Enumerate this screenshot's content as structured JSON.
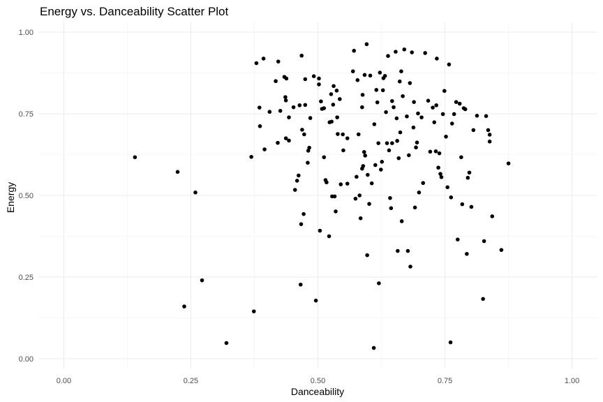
{
  "chart_data": {
    "type": "scatter",
    "title": "Energy vs. Danceability Scatter Plot",
    "xlabel": "Danceability",
    "ylabel": "Energy",
    "xlim": [
      -0.05,
      1.05
    ],
    "ylim": [
      -0.03,
      1.03
    ],
    "xticks": [
      0.0,
      0.25,
      0.5,
      0.75,
      1.0
    ],
    "xtick_labels": [
      "0.00",
      "0.25",
      "0.50",
      "0.75",
      "1.00"
    ],
    "yticks": [
      0.0,
      0.25,
      0.5,
      0.75,
      1.0
    ],
    "ytick_labels": [
      "0.00",
      "0.25",
      "0.50",
      "0.75",
      "1.00"
    ],
    "grid": true,
    "legend": "none",
    "point_color": "#000000",
    "points": [
      [
        0.14,
        0.617
      ],
      [
        0.224,
        0.572
      ],
      [
        0.259,
        0.509
      ],
      [
        0.237,
        0.16
      ],
      [
        0.272,
        0.24
      ],
      [
        0.32,
        0.048
      ],
      [
        0.369,
        0.618
      ],
      [
        0.374,
        0.145
      ],
      [
        0.379,
        0.905
      ],
      [
        0.385,
        0.769
      ],
      [
        0.386,
        0.712
      ],
      [
        0.393,
        0.919
      ],
      [
        0.395,
        0.641
      ],
      [
        0.405,
        0.756
      ],
      [
        0.417,
        0.85
      ],
      [
        0.421,
        0.661
      ],
      [
        0.422,
        0.91
      ],
      [
        0.426,
        0.759
      ],
      [
        0.434,
        0.863
      ],
      [
        0.436,
        0.801
      ],
      [
        0.437,
        0.791
      ],
      [
        0.438,
        0.858
      ],
      [
        0.437,
        0.675
      ],
      [
        0.443,
        0.668
      ],
      [
        0.443,
        0.739
      ],
      [
        0.452,
        0.77
      ],
      [
        0.455,
        0.517
      ],
      [
        0.459,
        0.545
      ],
      [
        0.462,
        0.561
      ],
      [
        0.464,
        0.776
      ],
      [
        0.466,
        0.227
      ],
      [
        0.467,
        0.412
      ],
      [
        0.468,
        0.928
      ],
      [
        0.469,
        0.701
      ],
      [
        0.472,
        0.443
      ],
      [
        0.473,
        0.687
      ],
      [
        0.475,
        0.856
      ],
      [
        0.475,
        0.777
      ],
      [
        0.48,
        0.6
      ],
      [
        0.481,
        0.637
      ],
      [
        0.483,
        0.646
      ],
      [
        0.485,
        0.737
      ],
      [
        0.492,
        0.865
      ],
      [
        0.496,
        0.178
      ],
      [
        0.502,
        0.84
      ],
      [
        0.502,
        0.858
      ],
      [
        0.504,
        0.392
      ],
      [
        0.506,
        0.788
      ],
      [
        0.508,
        0.765
      ],
      [
        0.512,
        0.767
      ],
      [
        0.512,
        0.617
      ],
      [
        0.515,
        0.547
      ],
      [
        0.517,
        0.54
      ],
      [
        0.522,
        0.375
      ],
      [
        0.523,
        0.724
      ],
      [
        0.526,
        0.81
      ],
      [
        0.527,
        0.726
      ],
      [
        0.528,
        0.497
      ],
      [
        0.53,
        0.778
      ],
      [
        0.531,
        0.835
      ],
      [
        0.533,
        0.497
      ],
      [
        0.535,
        0.451
      ],
      [
        0.537,
        0.821
      ],
      [
        0.538,
        0.739
      ],
      [
        0.539,
        0.688
      ],
      [
        0.543,
        0.795
      ],
      [
        0.545,
        0.534
      ],
      [
        0.549,
        0.687
      ],
      [
        0.55,
        0.638
      ],
      [
        0.558,
        0.675
      ],
      [
        0.558,
        0.536
      ],
      [
        0.569,
        0.88
      ],
      [
        0.571,
        0.943
      ],
      [
        0.574,
        0.49
      ],
      [
        0.576,
        0.557
      ],
      [
        0.578,
        0.853
      ],
      [
        0.58,
        0.687
      ],
      [
        0.582,
        0.5
      ],
      [
        0.584,
        0.43
      ],
      [
        0.587,
        0.582
      ],
      [
        0.587,
        0.77
      ],
      [
        0.588,
        0.808
      ],
      [
        0.589,
        0.59
      ],
      [
        0.591,
        0.633
      ],
      [
        0.592,
        0.869
      ],
      [
        0.593,
        0.622
      ],
      [
        0.596,
        0.963
      ],
      [
        0.597,
        0.317
      ],
      [
        0.598,
        0.563
      ],
      [
        0.601,
        0.474
      ],
      [
        0.603,
        0.867
      ],
      [
        0.606,
        0.537
      ],
      [
        0.61,
        0.033
      ],
      [
        0.611,
        0.718
      ],
      [
        0.613,
        0.593
      ],
      [
        0.615,
        0.823
      ],
      [
        0.617,
        0.785
      ],
      [
        0.619,
        0.66
      ],
      [
        0.62,
        0.231
      ],
      [
        0.622,
        0.876
      ],
      [
        0.624,
        0.579
      ],
      [
        0.626,
        0.603
      ],
      [
        0.628,
        0.822
      ],
      [
        0.629,
        0.859
      ],
      [
        0.632,
        0.866
      ],
      [
        0.634,
        0.755
      ],
      [
        0.636,
        0.66
      ],
      [
        0.638,
        0.927
      ],
      [
        0.64,
        0.638
      ],
      [
        0.642,
        0.492
      ],
      [
        0.644,
        0.461
      ],
      [
        0.646,
        0.789
      ],
      [
        0.646,
        0.66
      ],
      [
        0.649,
        0.77
      ],
      [
        0.653,
        0.94
      ],
      [
        0.655,
        0.736
      ],
      [
        0.656,
        0.667
      ],
      [
        0.657,
        0.33
      ],
      [
        0.659,
        0.614
      ],
      [
        0.661,
        0.849
      ],
      [
        0.662,
        0.693
      ],
      [
        0.664,
        0.88
      ],
      [
        0.665,
        0.421
      ],
      [
        0.667,
        0.804
      ],
      [
        0.67,
        0.947
      ],
      [
        0.675,
        0.742
      ],
      [
        0.677,
        0.33
      ],
      [
        0.679,
        0.623
      ],
      [
        0.681,
        0.844
      ],
      [
        0.682,
        0.282
      ],
      [
        0.685,
        0.938
      ],
      [
        0.688,
        0.708
      ],
      [
        0.689,
        0.786
      ],
      [
        0.691,
        0.463
      ],
      [
        0.693,
        0.647
      ],
      [
        0.695,
        0.662
      ],
      [
        0.697,
        0.751
      ],
      [
        0.699,
        0.509
      ],
      [
        0.704,
        0.739
      ],
      [
        0.707,
        0.538
      ],
      [
        0.711,
        0.936
      ],
      [
        0.717,
        0.79
      ],
      [
        0.721,
        0.634
      ],
      [
        0.726,
        0.769
      ],
      [
        0.729,
        0.724
      ],
      [
        0.732,
        0.635
      ],
      [
        0.733,
        0.776
      ],
      [
        0.734,
        0.919
      ],
      [
        0.737,
        0.585
      ],
      [
        0.739,
        0.629
      ],
      [
        0.741,
        0.566
      ],
      [
        0.743,
        0.556
      ],
      [
        0.746,
        0.749
      ],
      [
        0.749,
        0.82
      ],
      [
        0.752,
        0.68
      ],
      [
        0.755,
        0.525
      ],
      [
        0.758,
        0.901
      ],
      [
        0.761,
        0.05
      ],
      [
        0.762,
        0.494
      ],
      [
        0.764,
        0.72
      ],
      [
        0.768,
        0.749
      ],
      [
        0.772,
        0.786
      ],
      [
        0.775,
        0.365
      ],
      [
        0.779,
        0.781
      ],
      [
        0.782,
        0.617
      ],
      [
        0.784,
        0.473
      ],
      [
        0.787,
        0.767
      ],
      [
        0.79,
        0.764
      ],
      [
        0.793,
        0.321
      ],
      [
        0.795,
        0.554
      ],
      [
        0.798,
        0.57
      ],
      [
        0.802,
        0.465
      ],
      [
        0.806,
        0.7
      ],
      [
        0.813,
        0.744
      ],
      [
        0.825,
        0.183
      ],
      [
        0.827,
        0.36
      ],
      [
        0.831,
        0.743
      ],
      [
        0.835,
        0.7
      ],
      [
        0.838,
        0.686
      ],
      [
        0.838,
        0.665
      ],
      [
        0.843,
        0.436
      ],
      [
        0.861,
        0.333
      ],
      [
        0.875,
        0.598
      ]
    ]
  }
}
